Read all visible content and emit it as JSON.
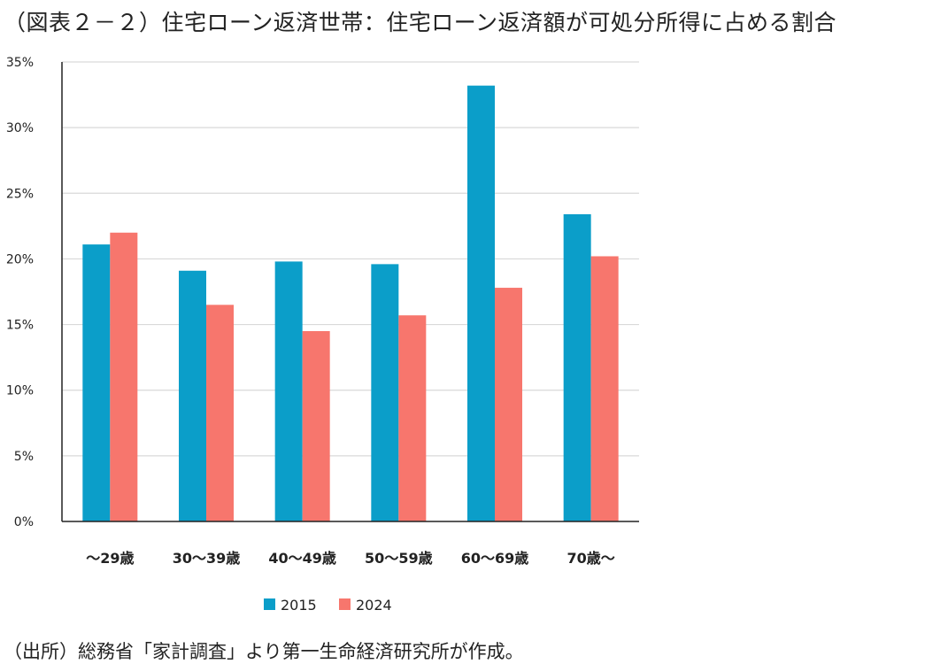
{
  "title": "（図表２－２）住宅ローン返済世帯：住宅ローン返済額が可処分所得に占める割合",
  "source": "（出所）総務省「家計調査」より第一生命経済研究所が作成。",
  "colors": {
    "s2015": "#0b9ec9",
    "s2024": "#f7766d",
    "grid": "#d9d9d9",
    "axis": "#222222"
  },
  "chart_data": {
    "type": "bar",
    "categories": [
      "～29歳",
      "30～39歳",
      "40～49歳",
      "50～59歳",
      "60～69歳",
      "70歳～"
    ],
    "series": [
      {
        "name": "2015",
        "values": [
          21.1,
          19.1,
          19.8,
          19.6,
          33.2,
          23.4
        ]
      },
      {
        "name": "2024",
        "values": [
          22.0,
          16.5,
          14.5,
          15.7,
          17.8,
          20.2
        ]
      }
    ],
    "yticks": [
      "0%",
      "5%",
      "10%",
      "15%",
      "20%",
      "25%",
      "30%",
      "35%"
    ],
    "ylim": [
      0,
      35
    ],
    "ytick_step": 5,
    "legend_position": "bottom"
  }
}
